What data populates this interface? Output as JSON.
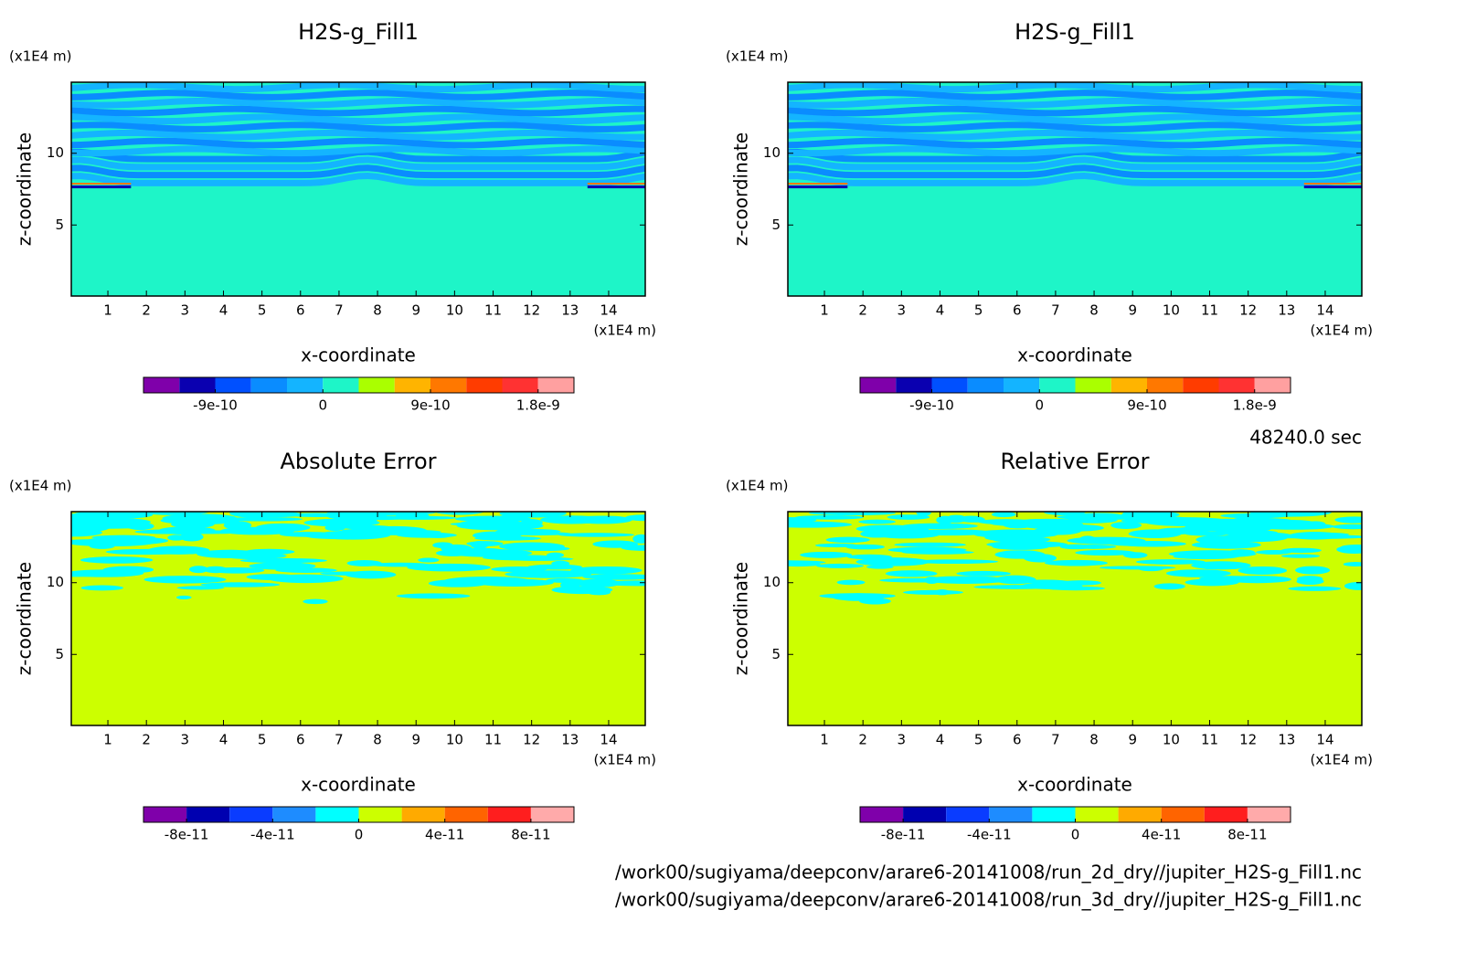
{
  "chart_data": [
    {
      "type": "contour",
      "title": "H2S-g_Fill1",
      "xlabel": "x-coordinate",
      "ylabel": "z-coordinate",
      "xunit": "(x1E4 m)",
      "yunit": "(x1E4 m)",
      "xlim": [
        0.05,
        14.95
      ],
      "ylim": [
        0.05,
        14.95
      ],
      "xticks": [
        1,
        2,
        3,
        4,
        5,
        6,
        7,
        8,
        9,
        10,
        11,
        12,
        13,
        14
      ],
      "yticks": [
        5,
        10
      ],
      "colorbar": {
        "lim": [
          -1.5e-09,
          2.1e-09
        ],
        "ticks": [
          -9e-10,
          0,
          9e-10,
          1.8e-09
        ],
        "colors": [
          "#7f00aa",
          "#0a00b0",
          "#0050ff",
          "#0a8cff",
          "#14b4ff",
          "#1ef5c8",
          "#aaff00",
          "#ffb400",
          "#ff7800",
          "#ff3c00",
          "#ff3232",
          "#ffa0a0"
        ]
      }
    },
    {
      "type": "contour",
      "title": "H2S-g_Fill1",
      "xlabel": "x-coordinate",
      "ylabel": "z-coordinate",
      "xunit": "(x1E4 m)",
      "yunit": "(x1E4 m)",
      "xlim": [
        0.05,
        14.95
      ],
      "ylim": [
        0.05,
        14.95
      ],
      "xticks": [
        1,
        2,
        3,
        4,
        5,
        6,
        7,
        8,
        9,
        10,
        11,
        12,
        13,
        14
      ],
      "yticks": [
        5,
        10
      ],
      "colorbar": {
        "lim": [
          -1.5e-09,
          2.1e-09
        ],
        "ticks": [
          -9e-10,
          0,
          9e-10,
          1.8e-09
        ],
        "colors": [
          "#7f00aa",
          "#0a00b0",
          "#0050ff",
          "#0a8cff",
          "#14b4ff",
          "#1ef5c8",
          "#aaff00",
          "#ffb400",
          "#ff7800",
          "#ff3c00",
          "#ff3232",
          "#ffa0a0"
        ]
      }
    },
    {
      "type": "contour",
      "title": "Absolute Error",
      "xlabel": "x-coordinate",
      "ylabel": "z-coordinate",
      "xunit": "(x1E4 m)",
      "yunit": "(x1E4 m)",
      "xlim": [
        0.05,
        14.95
      ],
      "ylim": [
        0.05,
        14.95
      ],
      "xticks": [
        1,
        2,
        3,
        4,
        5,
        6,
        7,
        8,
        9,
        10,
        11,
        12,
        13,
        14
      ],
      "yticks": [
        5,
        10
      ],
      "colorbar": {
        "lim": [
          -1e-10,
          1e-10
        ],
        "ticks": [
          -8e-11,
          -4e-11,
          0,
          4e-11,
          8e-11
        ],
        "colors": [
          "#7f00aa",
          "#0000b0",
          "#0a3cff",
          "#1e8cff",
          "#00ffff",
          "#ccff00",
          "#ffaa00",
          "#ff6400",
          "#ff1e1e",
          "#ffaaaa"
        ]
      }
    },
    {
      "type": "contour",
      "title": "Relative Error",
      "xlabel": "x-coordinate",
      "ylabel": "z-coordinate",
      "xunit": "(x1E4 m)",
      "yunit": "(x1E4 m)",
      "xlim": [
        0.05,
        14.95
      ],
      "ylim": [
        0.05,
        14.95
      ],
      "xticks": [
        1,
        2,
        3,
        4,
        5,
        6,
        7,
        8,
        9,
        10,
        11,
        12,
        13,
        14
      ],
      "yticks": [
        5,
        10
      ],
      "colorbar": {
        "lim": [
          -1e-10,
          1e-10
        ],
        "ticks": [
          -8e-11,
          -4e-11,
          0,
          4e-11,
          8e-11
        ],
        "colors": [
          "#7f00aa",
          "#0000b0",
          "#0a3cff",
          "#1e8cff",
          "#00ffff",
          "#ccff00",
          "#ffaa00",
          "#ff6400",
          "#ff1e1e",
          "#ffaaaa"
        ]
      }
    }
  ],
  "time": "48240.0 sec",
  "files": [
    "/work00/sugiyama/deepconv/arare6-20141008/run_2d_dry//jupiter_H2S-g_Fill1.nc",
    "/work00/sugiyama/deepconv/arare6-20141008/run_3d_dry//jupiter_H2S-g_Fill1.nc"
  ]
}
